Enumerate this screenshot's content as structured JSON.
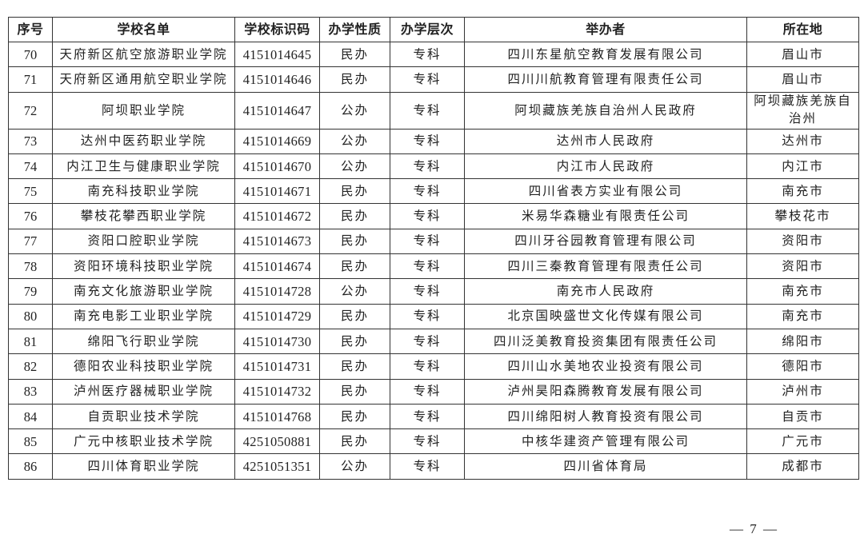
{
  "table": {
    "headers": [
      "序号",
      "学校名单",
      "学校标识码",
      "办学性质",
      "办学层次",
      "举办者",
      "所在地"
    ],
    "rows": [
      [
        "70",
        "天府新区航空旅游职业学院",
        "4151014645",
        "民办",
        "专科",
        "四川东星航空教育发展有限公司",
        "眉山市"
      ],
      [
        "71",
        "天府新区通用航空职业学院",
        "4151014646",
        "民办",
        "专科",
        "四川川航教育管理有限责任公司",
        "眉山市"
      ],
      [
        "72",
        "阿坝职业学院",
        "4151014647",
        "公办",
        "专科",
        "阿坝藏族羌族自治州人民政府",
        "阿坝藏族羌族自治州"
      ],
      [
        "73",
        "达州中医药职业学院",
        "4151014669",
        "公办",
        "专科",
        "达州市人民政府",
        "达州市"
      ],
      [
        "74",
        "内江卫生与健康职业学院",
        "4151014670",
        "公办",
        "专科",
        "内江市人民政府",
        "内江市"
      ],
      [
        "75",
        "南充科技职业学院",
        "4151014671",
        "民办",
        "专科",
        "四川省表方实业有限公司",
        "南充市"
      ],
      [
        "76",
        "攀枝花攀西职业学院",
        "4151014672",
        "民办",
        "专科",
        "米易华森糖业有限责任公司",
        "攀枝花市"
      ],
      [
        "77",
        "资阳口腔职业学院",
        "4151014673",
        "民办",
        "专科",
        "四川牙谷园教育管理有限公司",
        "资阳市"
      ],
      [
        "78",
        "资阳环境科技职业学院",
        "4151014674",
        "民办",
        "专科",
        "四川三秦教育管理有限责任公司",
        "资阳市"
      ],
      [
        "79",
        "南充文化旅游职业学院",
        "4151014728",
        "公办",
        "专科",
        "南充市人民政府",
        "南充市"
      ],
      [
        "80",
        "南充电影工业职业学院",
        "4151014729",
        "民办",
        "专科",
        "北京国映盛世文化传媒有限公司",
        "南充市"
      ],
      [
        "81",
        "绵阳飞行职业学院",
        "4151014730",
        "民办",
        "专科",
        "四川泛美教育投资集团有限责任公司",
        "绵阳市"
      ],
      [
        "82",
        "德阳农业科技职业学院",
        "4151014731",
        "民办",
        "专科",
        "四川山水美地农业投资有限公司",
        "德阳市"
      ],
      [
        "83",
        "泸州医疗器械职业学院",
        "4151014732",
        "民办",
        "专科",
        "泸州昊阳森腾教育发展有限公司",
        "泸州市"
      ],
      [
        "84",
        "自贡职业技术学院",
        "4151014768",
        "民办",
        "专科",
        "四川绵阳树人教育投资有限公司",
        "自贡市"
      ],
      [
        "85",
        "广元中核职业技术学院",
        "4251050881",
        "民办",
        "专科",
        "中核华建资产管理有限公司",
        "广元市"
      ],
      [
        "86",
        "四川体育职业学院",
        "4251051351",
        "公办",
        "专科",
        "四川省体育局",
        "成都市"
      ]
    ]
  },
  "footer": {
    "page_number": "— 7 —"
  }
}
